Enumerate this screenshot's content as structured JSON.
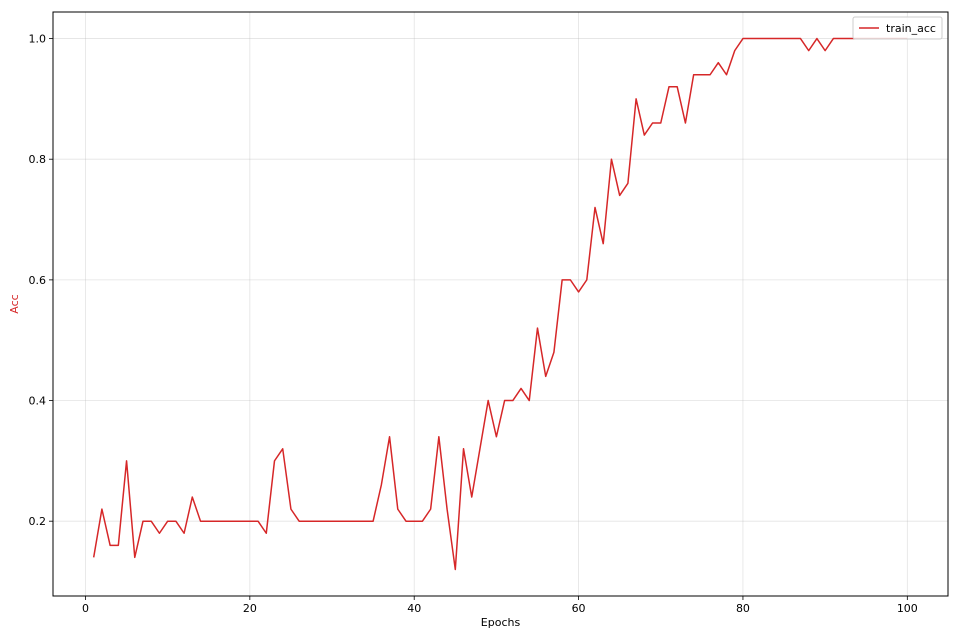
{
  "chart_data": {
    "type": "line",
    "title": "",
    "xlabel": "Epochs",
    "ylabel": "Acc",
    "xlim": [
      -3.95,
      104.95
    ],
    "ylim": [
      0.076,
      1.044
    ],
    "xticks": [
      0,
      20,
      40,
      60,
      80,
      100
    ],
    "yticks": [
      0.2,
      0.4,
      0.6,
      0.8,
      1.0
    ],
    "xtick_labels": [
      "0",
      "20",
      "40",
      "60",
      "80",
      "100"
    ],
    "ytick_labels": [
      "0.2",
      "0.4",
      "0.6",
      "0.8",
      "1.0"
    ],
    "grid": true,
    "legend_position": "top-right",
    "ylabel_color": "#d62728",
    "series": [
      {
        "name": "train_acc",
        "color": "#d62728",
        "x": [
          1,
          2,
          3,
          4,
          5,
          6,
          7,
          8,
          9,
          10,
          11,
          12,
          13,
          14,
          15,
          16,
          17,
          18,
          19,
          20,
          21,
          22,
          23,
          24,
          25,
          26,
          27,
          28,
          29,
          30,
          31,
          32,
          33,
          34,
          35,
          36,
          37,
          38,
          39,
          40,
          41,
          42,
          43,
          44,
          45,
          46,
          47,
          48,
          49,
          50,
          51,
          52,
          53,
          54,
          55,
          56,
          57,
          58,
          59,
          60,
          61,
          62,
          63,
          64,
          65,
          66,
          67,
          68,
          69,
          70,
          71,
          72,
          73,
          74,
          75,
          76,
          77,
          78,
          79,
          80,
          81,
          82,
          83,
          84,
          85,
          86,
          87,
          88,
          89,
          90,
          91,
          92,
          93,
          94,
          95,
          96,
          97,
          98,
          99,
          100
        ],
        "values": [
          0.14,
          0.22,
          0.16,
          0.16,
          0.3,
          0.14,
          0.2,
          0.2,
          0.18,
          0.2,
          0.2,
          0.18,
          0.24,
          0.2,
          0.2,
          0.2,
          0.2,
          0.2,
          0.2,
          0.2,
          0.2,
          0.18,
          0.3,
          0.32,
          0.22,
          0.2,
          0.2,
          0.2,
          0.2,
          0.2,
          0.2,
          0.2,
          0.2,
          0.2,
          0.2,
          0.26,
          0.34,
          0.22,
          0.2,
          0.2,
          0.2,
          0.22,
          0.34,
          0.22,
          0.12,
          0.32,
          0.24,
          0.32,
          0.4,
          0.34,
          0.4,
          0.4,
          0.42,
          0.4,
          0.52,
          0.44,
          0.48,
          0.6,
          0.6,
          0.58,
          0.6,
          0.72,
          0.66,
          0.8,
          0.74,
          0.76,
          0.9,
          0.84,
          0.86,
          0.86,
          0.92,
          0.92,
          0.86,
          0.94,
          0.94,
          0.94,
          0.96,
          0.94,
          0.98,
          1.0,
          1.0,
          1.0,
          1.0,
          1.0,
          1.0,
          1.0,
          1.0,
          0.98,
          1.0,
          0.98,
          1.0,
          1.0,
          1.0,
          1.0,
          1.0,
          1.0,
          1.0,
          1.0,
          1.0,
          1.0
        ]
      }
    ]
  }
}
